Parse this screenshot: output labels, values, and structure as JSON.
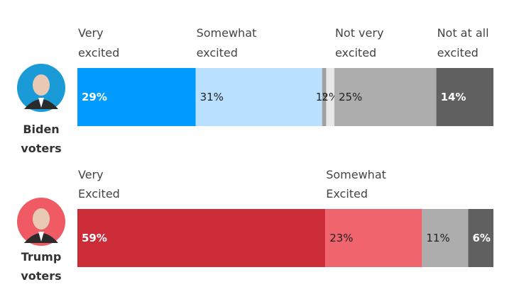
{
  "chart_data": {
    "type": "bar",
    "orientation": "horizontal-stacked",
    "unit": "%",
    "groups": [
      {
        "name": "Biden voters",
        "label_lines": [
          "Biden",
          "voters"
        ],
        "avatar_color": "#1a9bd7",
        "segments": [
          {
            "label_lines": [
              "Very",
              "excited"
            ],
            "value": 29,
            "text": "29%",
            "color": "#009bff",
            "text_color": "#ffffff",
            "bold": true
          },
          {
            "label_lines": [
              "Somewhat",
              "excited"
            ],
            "value": 31,
            "text": "31%",
            "color": "#b9e0ff",
            "text_color": "#222222",
            "bold": false
          },
          {
            "label_lines": [],
            "value": 1,
            "text": "1%",
            "color": "#a0a0a0",
            "text_color": "#222222",
            "bold": false
          },
          {
            "label_lines": [],
            "value": 2,
            "text": "2%",
            "color": "#e8e8e8",
            "text_color": "#222222",
            "bold": false
          },
          {
            "label_lines": [
              "Not very",
              "excited"
            ],
            "value": 25,
            "text": "25%",
            "color": "#adadad",
            "text_color": "#222222",
            "bold": false
          },
          {
            "label_lines": [
              "Not at all",
              "excited"
            ],
            "value": 14,
            "text": "14%",
            "color": "#606060",
            "text_color": "#ffffff",
            "bold": true
          }
        ]
      },
      {
        "name": "Trump voters",
        "label_lines": [
          "Trump",
          "voters"
        ],
        "avatar_color": "#f05a64",
        "segments": [
          {
            "label_lines": [
              "Very",
              "Excited"
            ],
            "value": 59,
            "text": "59%",
            "color": "#cc2b38",
            "text_color": "#ffffff",
            "bold": true
          },
          {
            "label_lines": [
              "Somewhat",
              "Excited"
            ],
            "value": 23,
            "text": "23%",
            "color": "#f0646e",
            "text_color": "#222222",
            "bold": false
          },
          {
            "label_lines": [],
            "value": 11,
            "text": "11%",
            "color": "#adadad",
            "text_color": "#222222",
            "bold": false
          },
          {
            "label_lines": [],
            "value": 6,
            "text": "6%",
            "color": "#606060",
            "text_color": "#ffffff",
            "bold": true
          }
        ]
      }
    ]
  }
}
